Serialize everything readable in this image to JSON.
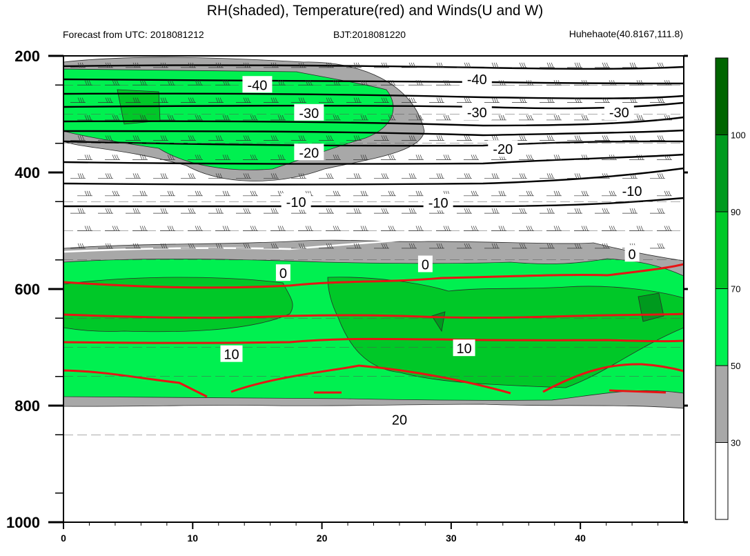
{
  "title": "RH(shaded), Temperature(red) and Winds(U and W)",
  "subtitle_left": "Forecast from UTC: 2018081212",
  "subtitle_center": "BJT:2018081220",
  "subtitle_right": "Huhehaote(40.8167,111.8)",
  "chart_data": {
    "type": "contour",
    "x_ticks": [
      0,
      10,
      20,
      30,
      40
    ],
    "xlim": [
      0,
      48
    ],
    "y_ticks": [
      200,
      400,
      600,
      800,
      1000
    ],
    "ylim": [
      200,
      1000
    ],
    "y_inverted": true,
    "colorbar": {
      "levels": [
        30,
        50,
        70,
        90,
        100
      ],
      "colors": [
        "#ffffff",
        "#a8a8a8",
        "#00f050",
        "#00c828",
        "#009a1e",
        "#006400"
      ]
    },
    "temperature_labels": [
      {
        "x": 15,
        "y": 250,
        "text": "-40"
      },
      {
        "x": 32,
        "y": 240,
        "text": "-40"
      },
      {
        "x": 19,
        "y": 298,
        "text": "-30"
      },
      {
        "x": 32,
        "y": 297,
        "text": "-30"
      },
      {
        "x": 43,
        "y": 297,
        "text": "-30"
      },
      {
        "x": 19,
        "y": 366,
        "text": "-20"
      },
      {
        "x": 34,
        "y": 360,
        "text": "-20"
      },
      {
        "x": 18,
        "y": 451,
        "text": "-10"
      },
      {
        "x": 29,
        "y": 452,
        "text": "-10"
      },
      {
        "x": 44,
        "y": 432,
        "text": "-10"
      },
      {
        "x": 17,
        "y": 573,
        "text": "0"
      },
      {
        "x": 28,
        "y": 558,
        "text": "0"
      },
      {
        "x": 44,
        "y": 540,
        "text": "0"
      },
      {
        "x": 13,
        "y": 712,
        "text": "10"
      },
      {
        "x": 31,
        "y": 702,
        "text": "10"
      },
      {
        "x": 26,
        "y": 824,
        "text": "20"
      }
    ]
  }
}
